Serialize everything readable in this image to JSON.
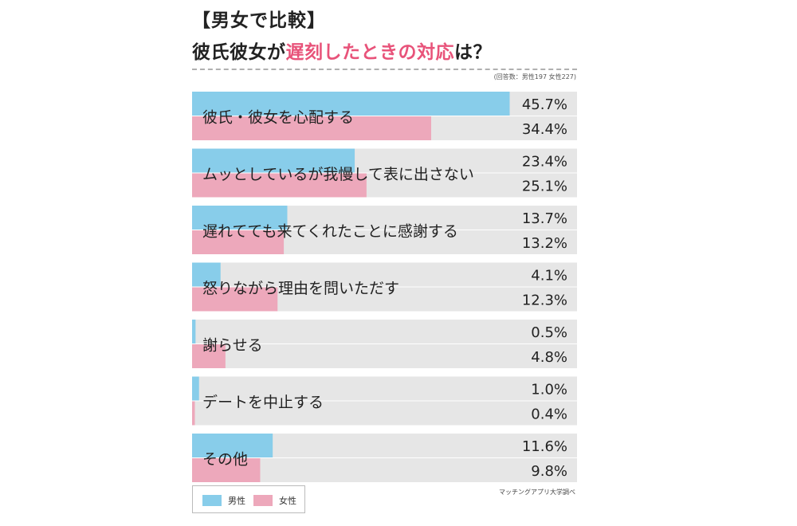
{
  "header": {
    "title_line1": "【男女で比較】",
    "title_line2_prefix": "彼氏彼女が",
    "title_line2_accent": "遅刻したときの対応",
    "title_line2_suffix": "は？",
    "respondents": "(回答数：男性197 女性227)"
  },
  "legend": {
    "male_label": "男性",
    "female_label": "女性"
  },
  "footer": {
    "source": "マッチングアプリ大学調べ"
  },
  "colors": {
    "male": "#88cdea",
    "female": "#eda8bb",
    "track": "#e6e6e6",
    "accent": "#e8537a"
  },
  "chart_data": {
    "type": "bar",
    "orientation": "horizontal",
    "categories": [
      "彼氏・彼女を心配する",
      "ムッとしているが我慢して表に出さない",
      "遅れてても来てくれたことに感謝する",
      "怒りながら理由を問いただす",
      "謝らせる",
      "デートを中止する",
      "その他"
    ],
    "series": [
      {
        "name": "男性",
        "values": [
          45.7,
          23.4,
          13.7,
          4.1,
          0.5,
          1.0,
          11.6
        ]
      },
      {
        "name": "女性",
        "values": [
          34.4,
          25.1,
          13.2,
          12.3,
          4.8,
          0.4,
          9.8
        ]
      }
    ],
    "value_labels": {
      "男性": [
        "45.7%",
        "23.4%",
        "13.7%",
        "4.1%",
        "0.5%",
        "1.0%",
        "11.6%"
      ],
      "女性": [
        "34.4%",
        "25.1%",
        "13.2%",
        "12.3%",
        "4.8%",
        "0.4%",
        "9.8%"
      ]
    },
    "xlim": [
      0,
      50
    ],
    "grid": false,
    "legend_position": "bottom-left"
  }
}
